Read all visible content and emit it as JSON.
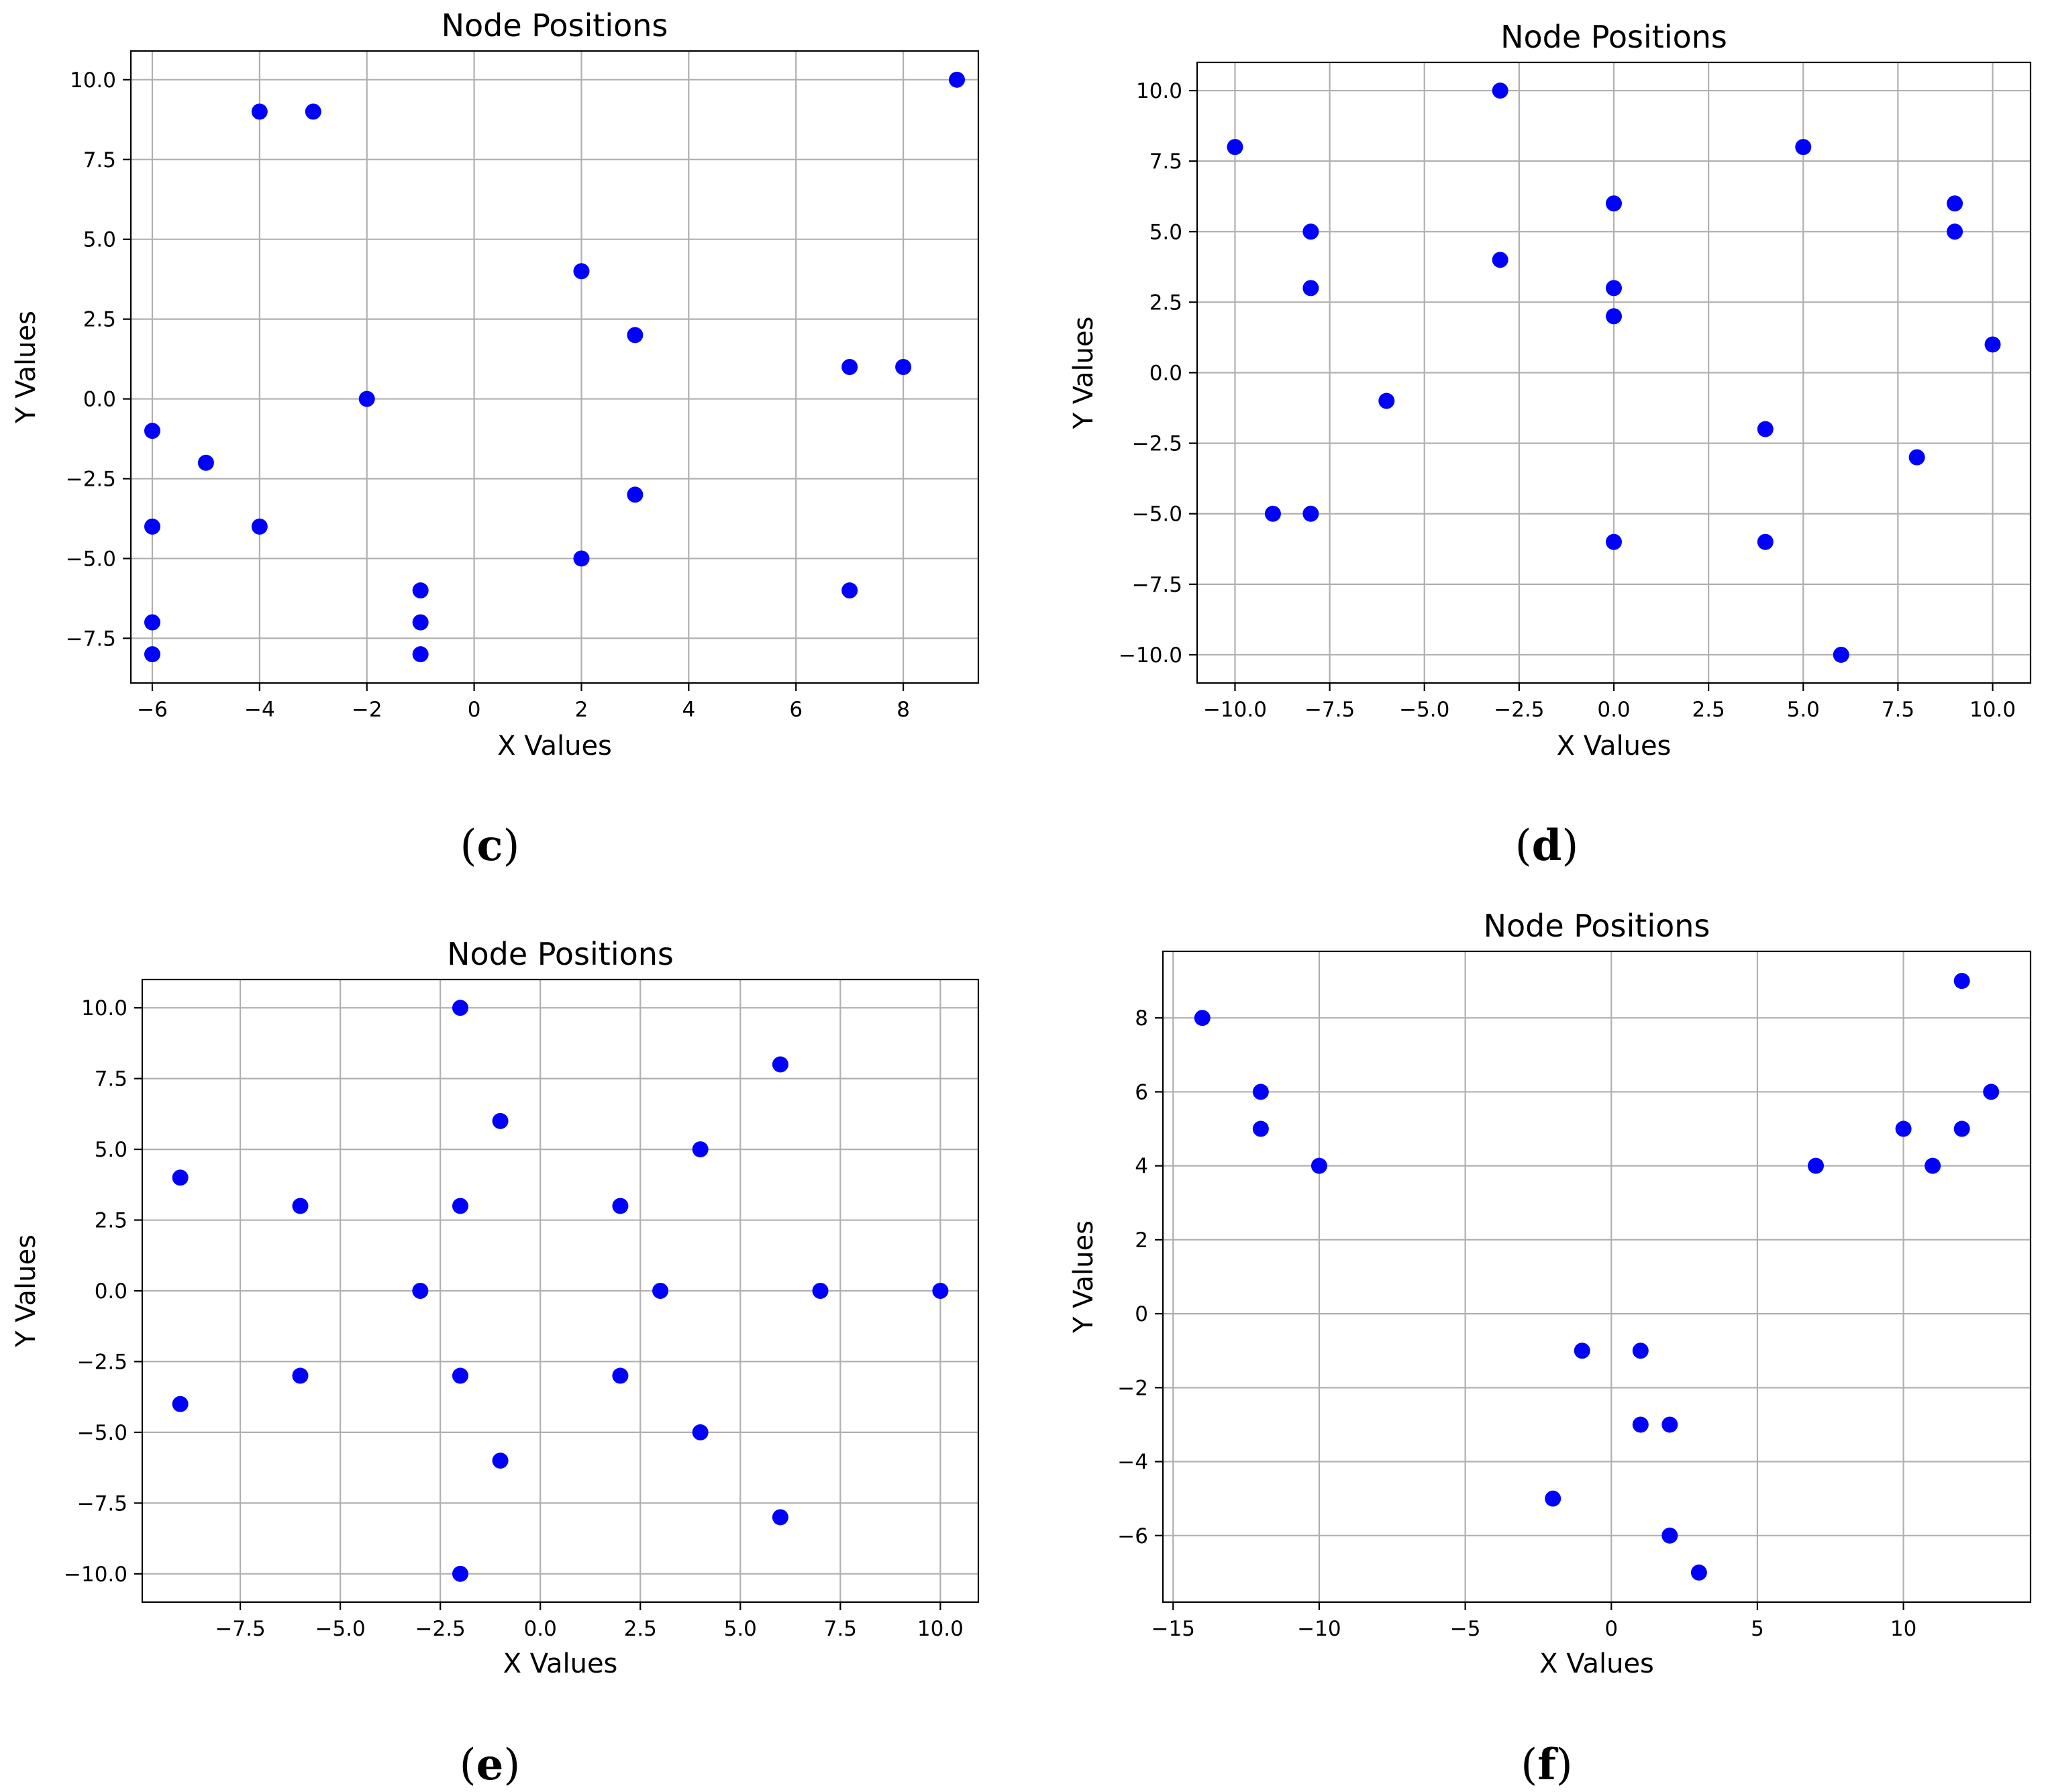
{
  "figure": {
    "colors": {
      "point": "#0000ff",
      "grid": "#b0b0b0",
      "axis": "#000000",
      "background": "#ffffff"
    }
  },
  "chart_data": [
    {
      "id": "c",
      "type": "scatter",
      "caption_letter": "c",
      "title": "Node Positions",
      "xlabel": "X Values",
      "ylabel": "Y Values",
      "xlim": [
        -6.4,
        9.4
      ],
      "ylim": [
        -8.9,
        10.9
      ],
      "xticks": [
        -6,
        -4,
        -2,
        0,
        2,
        4,
        6,
        8
      ],
      "xtick_labels": [
        "−6",
        "−4",
        "−2",
        "0",
        "2",
        "4",
        "6",
        "8"
      ],
      "yticks": [
        -7.5,
        -5.0,
        -2.5,
        0.0,
        2.5,
        5.0,
        7.5,
        10.0
      ],
      "ytick_labels": [
        "−7.5",
        "−5.0",
        "−2.5",
        "0.0",
        "2.5",
        "5.0",
        "7.5",
        "10.0"
      ],
      "grid": true,
      "points": [
        [
          9,
          10
        ],
        [
          -4,
          9
        ],
        [
          -3,
          9
        ],
        [
          2,
          4
        ],
        [
          3,
          2
        ],
        [
          7,
          1
        ],
        [
          8,
          1
        ],
        [
          -2,
          0
        ],
        [
          -6,
          -1
        ],
        [
          -5,
          -2
        ],
        [
          3,
          -3
        ],
        [
          -6,
          -4
        ],
        [
          -4,
          -4
        ],
        [
          2,
          -5
        ],
        [
          -1,
          -6
        ],
        [
          7,
          -6
        ],
        [
          -6,
          -7
        ],
        [
          -1,
          -7
        ],
        [
          -6,
          -8
        ],
        [
          -1,
          -8
        ]
      ]
    },
    {
      "id": "d",
      "type": "scatter",
      "caption_letter": "d",
      "title": "Node Positions",
      "xlabel": "X Values",
      "ylabel": "Y Values",
      "xlim": [
        -11,
        11
      ],
      "ylim": [
        -11,
        11
      ],
      "xticks": [
        -10,
        -7.5,
        -5,
        -2.5,
        0,
        2.5,
        5,
        7.5,
        10
      ],
      "xtick_labels": [
        "−10.0",
        "−7.5",
        "−5.0",
        "−2.5",
        "0.0",
        "2.5",
        "5.0",
        "7.5",
        "10.0"
      ],
      "yticks": [
        -10,
        -7.5,
        -5,
        -2.5,
        0,
        2.5,
        5,
        7.5,
        10
      ],
      "ytick_labels": [
        "−10.0",
        "−7.5",
        "−5.0",
        "−2.5",
        "0.0",
        "2.5",
        "5.0",
        "7.5",
        "10.0"
      ],
      "grid": true,
      "points": [
        [
          -3,
          10
        ],
        [
          -10,
          8
        ],
        [
          5,
          8
        ],
        [
          0,
          6
        ],
        [
          9,
          6
        ],
        [
          -8,
          5
        ],
        [
          9,
          5
        ],
        [
          -3,
          4
        ],
        [
          -8,
          3
        ],
        [
          0,
          3
        ],
        [
          0,
          2
        ],
        [
          10,
          1
        ],
        [
          -6,
          -1
        ],
        [
          4,
          -2
        ],
        [
          8,
          -3
        ],
        [
          -9,
          -5
        ],
        [
          -8,
          -5
        ],
        [
          0,
          -6
        ],
        [
          4,
          -6
        ],
        [
          6,
          -10
        ]
      ]
    },
    {
      "id": "e",
      "type": "scatter",
      "caption_letter": "e",
      "title": "Node Positions",
      "xlabel": "X Values",
      "ylabel": "Y Values",
      "xlim": [
        -9.95,
        10.95
      ],
      "ylim": [
        -11,
        11
      ],
      "xticks": [
        -7.5,
        -5,
        -2.5,
        0,
        2.5,
        5,
        7.5,
        10
      ],
      "xtick_labels": [
        "−7.5",
        "−5.0",
        "−2.5",
        "0.0",
        "2.5",
        "5.0",
        "7.5",
        "10.0"
      ],
      "yticks": [
        -10,
        -7.5,
        -5,
        -2.5,
        0,
        2.5,
        5,
        7.5,
        10
      ],
      "ytick_labels": [
        "−10.0",
        "−7.5",
        "−5.0",
        "−2.5",
        "0.0",
        "2.5",
        "5.0",
        "7.5",
        "10.0"
      ],
      "grid": true,
      "points": [
        [
          -2,
          10
        ],
        [
          6,
          8
        ],
        [
          -1,
          6
        ],
        [
          4,
          5
        ],
        [
          -9,
          4
        ],
        [
          -6,
          3
        ],
        [
          -2,
          3
        ],
        [
          2,
          3
        ],
        [
          -3,
          0
        ],
        [
          3,
          0
        ],
        [
          7,
          0
        ],
        [
          10,
          0
        ],
        [
          -6,
          -3
        ],
        [
          -2,
          -3
        ],
        [
          2,
          -3
        ],
        [
          -9,
          -4
        ],
        [
          4,
          -5
        ],
        [
          -1,
          -6
        ],
        [
          6,
          -8
        ],
        [
          -2,
          -10
        ]
      ]
    },
    {
      "id": "f",
      "type": "scatter",
      "caption_letter": "f",
      "title": "Node Positions",
      "xlabel": "X Values",
      "ylabel": "Y Values",
      "xlim": [
        -15.35,
        14.35
      ],
      "ylim": [
        -7.8,
        9.8
      ],
      "xticks": [
        -15,
        -10,
        -5,
        0,
        5,
        10
      ],
      "xtick_labels": [
        "−15",
        "−10",
        "−5",
        "0",
        "5",
        "10"
      ],
      "yticks": [
        -6,
        -4,
        -2,
        0,
        2,
        4,
        6,
        8
      ],
      "ytick_labels": [
        "−6",
        "−4",
        "−2",
        "0",
        "2",
        "4",
        "6",
        "8"
      ],
      "grid": true,
      "points": [
        [
          12,
          9
        ],
        [
          -14,
          8
        ],
        [
          -12,
          6
        ],
        [
          13,
          6
        ],
        [
          -12,
          5
        ],
        [
          10,
          5
        ],
        [
          12,
          5
        ],
        [
          -10,
          4
        ],
        [
          7,
          4
        ],
        [
          11,
          4
        ],
        [
          -1,
          -1
        ],
        [
          1,
          -1
        ],
        [
          1,
          -3
        ],
        [
          2,
          -3
        ],
        [
          -2,
          -5
        ],
        [
          2,
          -6
        ],
        [
          3,
          -7
        ]
      ]
    }
  ]
}
